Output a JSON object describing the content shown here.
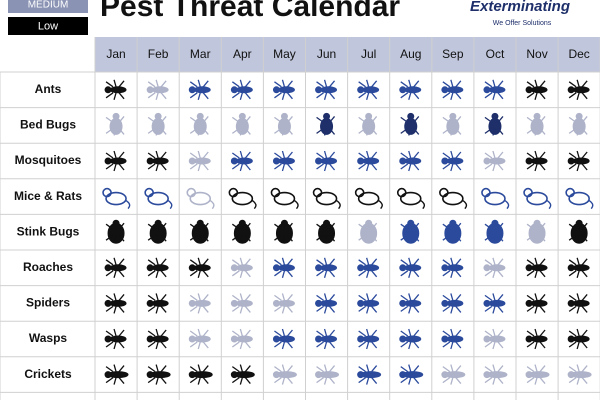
{
  "header": {
    "title": "Pest Threat Calendar",
    "legend": [
      "MEDIUM",
      "Low"
    ],
    "logo": "Exterminating",
    "slogan": "We Offer Solutions"
  },
  "table": {
    "months": [
      "Jan",
      "Feb",
      "Mar",
      "Apr",
      "May",
      "Jun",
      "Jul",
      "Aug",
      "Sep",
      "Oct",
      "Nov",
      "Dec"
    ],
    "rows": [
      {
        "name": "Ants",
        "colors": [
          "#111111",
          "#aeb3c9",
          "#2b4a9c",
          "#2b4a9c",
          "#2b4a9c",
          "#2b4a9c",
          "#2b4a9c",
          "#2b4a9c",
          "#2b4a9c",
          "#2b4a9c",
          "#111111",
          "#111111"
        ]
      },
      {
        "name": "Bed Bugs",
        "colors": [
          "#aeb3c9",
          "#aeb3c9",
          "#aeb3c9",
          "#aeb3c9",
          "#aeb3c9",
          "#1e2f6a",
          "#aeb3c9",
          "#1e2f6a",
          "#aeb3c9",
          "#1e2f6a",
          "#aeb3c9",
          "#aeb3c9"
        ]
      },
      {
        "name": "Mosquitoes",
        "colors": [
          "#111111",
          "#111111",
          "#aeb3c9",
          "#2b4a9c",
          "#2b4a9c",
          "#2b4a9c",
          "#2b4a9c",
          "#2b4a9c",
          "#2b4a9c",
          "#aeb3c9",
          "#111111",
          "#111111"
        ]
      },
      {
        "name": "Mice & Rats",
        "colors": [
          "#2b4a9c",
          "#2b4a9c",
          "#aeb3c9",
          "#111111",
          "#111111",
          "#111111",
          "#111111",
          "#111111",
          "#111111",
          "#2b4a9c",
          "#2b4a9c",
          "#2b4a9c"
        ]
      },
      {
        "name": "Stink Bugs",
        "colors": [
          "#111111",
          "#111111",
          "#111111",
          "#111111",
          "#111111",
          "#111111",
          "#aeb3c9",
          "#2b4a9c",
          "#2b4a9c",
          "#2b4a9c",
          "#aeb3c9",
          "#111111"
        ]
      },
      {
        "name": "Roaches",
        "colors": [
          "#111111",
          "#111111",
          "#111111",
          "#aeb3c9",
          "#2b4a9c",
          "#2b4a9c",
          "#2b4a9c",
          "#2b4a9c",
          "#2b4a9c",
          "#aeb3c9",
          "#111111",
          "#111111"
        ]
      },
      {
        "name": "Spiders",
        "colors": [
          "#111111",
          "#111111",
          "#aeb3c9",
          "#aeb3c9",
          "#aeb3c9",
          "#2b4a9c",
          "#2b4a9c",
          "#2b4a9c",
          "#2b4a9c",
          "#2b4a9c",
          "#111111",
          "#111111"
        ]
      },
      {
        "name": "Wasps",
        "colors": [
          "#111111",
          "#111111",
          "#aeb3c9",
          "#aeb3c9",
          "#2b4a9c",
          "#2b4a9c",
          "#2b4a9c",
          "#2b4a9c",
          "#2b4a9c",
          "#aeb3c9",
          "#111111",
          "#111111"
        ]
      },
      {
        "name": "Crickets",
        "colors": [
          "#111111",
          "#111111",
          "#111111",
          "#111111",
          "#aeb3c9",
          "#aeb3c9",
          "#2b4a9c",
          "#2b4a9c",
          "#aeb3c9",
          "#aeb3c9",
          "#aeb3c9",
          "#aeb3c9"
        ]
      }
    ]
  }
}
